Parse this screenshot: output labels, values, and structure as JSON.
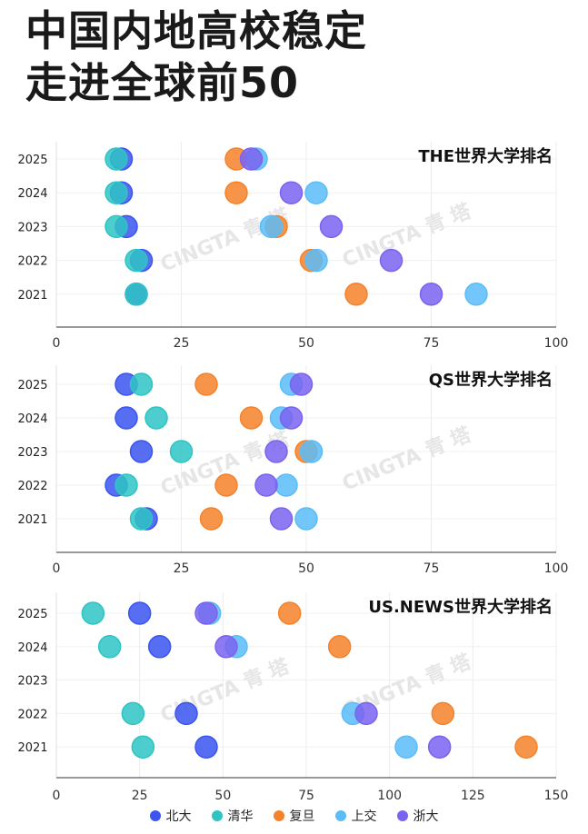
{
  "title": "中国内地高校稳定\n走进全球前50",
  "watermark": "CINGTA 青 塔",
  "legend": [
    {
      "name": "北大",
      "color": "#3a55f0"
    },
    {
      "name": "清华",
      "color": "#2ec4c4"
    },
    {
      "name": "复旦",
      "color": "#f5822a"
    },
    {
      "name": "上交",
      "color": "#5bbcf8"
    },
    {
      "name": "浙大",
      "color": "#7a63f0"
    }
  ],
  "chart_data": [
    {
      "type": "scatter",
      "title": "THE世界大学排名",
      "categories": [
        "2025",
        "2024",
        "2023",
        "2022",
        "2021"
      ],
      "xlim": [
        0,
        100
      ],
      "xticks": [
        0,
        25,
        50,
        75,
        100
      ],
      "grid": true,
      "series": [
        {
          "name": "北大",
          "values": [
            13,
            13,
            14,
            17,
            16
          ]
        },
        {
          "name": "清华",
          "values": [
            12,
            12,
            12,
            16,
            16
          ]
        },
        {
          "name": "复旦",
          "values": [
            36,
            36,
            44,
            51,
            60
          ]
        },
        {
          "name": "上交",
          "values": [
            40,
            52,
            43,
            52,
            84
          ]
        },
        {
          "name": "浙大",
          "values": [
            39,
            47,
            55,
            67,
            75
          ]
        }
      ]
    },
    {
      "type": "scatter",
      "title": "QS世界大学排名",
      "categories": [
        "2025",
        "2024",
        "2023",
        "2022",
        "2021"
      ],
      "xlim": [
        0,
        100
      ],
      "xticks": [
        0,
        25,
        50,
        75,
        100
      ],
      "grid": true,
      "series": [
        {
          "name": "北大",
          "values": [
            14,
            14,
            17,
            12,
            18
          ]
        },
        {
          "name": "清华",
          "values": [
            17,
            20,
            25,
            14,
            17
          ]
        },
        {
          "name": "复旦",
          "values": [
            30,
            39,
            50,
            34,
            31
          ]
        },
        {
          "name": "上交",
          "values": [
            47,
            45,
            51,
            46,
            50
          ]
        },
        {
          "name": "浙大",
          "values": [
            49,
            47,
            44,
            42,
            45
          ]
        }
      ]
    },
    {
      "type": "scatter",
      "title": "US.NEWS世界大学排名",
      "categories": [
        "2025",
        "2024",
        "2023",
        "2022",
        "2021"
      ],
      "xlim": [
        0,
        150
      ],
      "xticks": [
        0,
        25,
        50,
        75,
        100,
        125,
        150
      ],
      "grid": true,
      "series": [
        {
          "name": "北大",
          "values": [
            25,
            31,
            null,
            39,
            45
          ]
        },
        {
          "name": "清华",
          "values": [
            11,
            16,
            null,
            23,
            26
          ]
        },
        {
          "name": "复旦",
          "values": [
            70,
            85,
            null,
            116,
            141
          ]
        },
        {
          "name": "上交",
          "values": [
            46,
            54,
            null,
            89,
            105
          ]
        },
        {
          "name": "浙大",
          "values": [
            45,
            51,
            null,
            93,
            115
          ]
        }
      ]
    }
  ]
}
